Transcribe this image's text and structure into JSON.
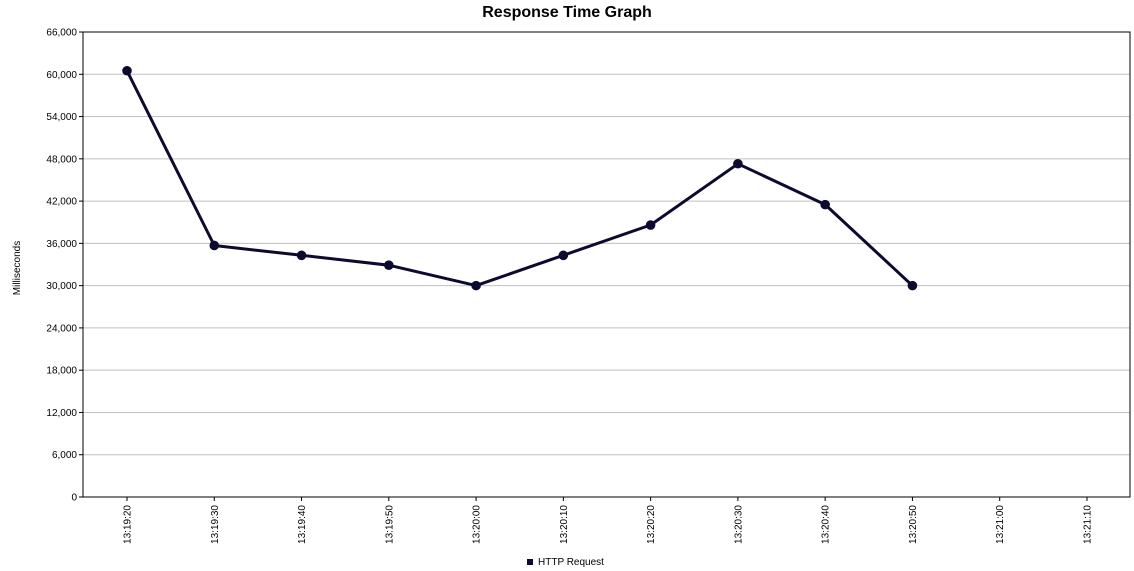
{
  "chart_data": {
    "type": "line",
    "title": "Response Time Graph",
    "xlabel": "",
    "ylabel": "Milliseconds",
    "ylim": [
      0,
      66000
    ],
    "yticks": [
      "0",
      "6,000",
      "12,000",
      "18,000",
      "24,000",
      "30,000",
      "36,000",
      "42,000",
      "48,000",
      "54,000",
      "60,000",
      "66,000"
    ],
    "categories": [
      "13:19:20",
      "13:19:30",
      "13:19:40",
      "13:19:50",
      "13:20:00",
      "13:20:10",
      "13:20:20",
      "13:20:30",
      "13:20:40",
      "13:20:50",
      "13:21:00",
      "13:21:10"
    ],
    "grid": true,
    "legend_position": "bottom",
    "series": [
      {
        "name": "HTTP Request",
        "color": "#0d0a30",
        "values": [
          60500,
          35700,
          34300,
          32900,
          30000,
          34300,
          38600,
          47300,
          41500,
          30000,
          null,
          null
        ]
      }
    ]
  }
}
